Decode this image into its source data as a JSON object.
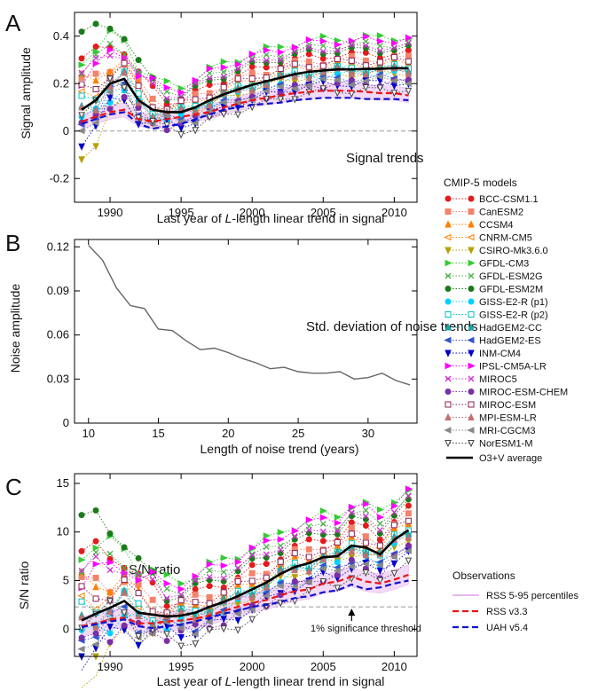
{
  "chart_data": [
    {
      "panel": "A",
      "type": "line",
      "annotation": "Signal trends",
      "xlabel_parts": [
        "Last year of ",
        "L",
        "-length linear trend in signal"
      ],
      "ylabel": "Signal amplitude",
      "xlim": [
        1987.5,
        2011.6
      ],
      "ylim": [
        -0.3,
        0.5
      ],
      "x_ticks": [
        1990,
        1995,
        2000,
        2005,
        2010
      ],
      "y_ticks": [
        -0.2,
        0,
        0.2,
        0.4
      ],
      "y_tick_labels": [
        "-0.2",
        "0",
        "0.2",
        "0.4"
      ],
      "reference_line": 0,
      "average": {
        "x": [
          1988,
          1989,
          1990,
          1991,
          1992,
          1993,
          1994,
          1995,
          1996,
          1997,
          1998,
          1999,
          2000,
          2001,
          2002,
          2003,
          2004,
          2005,
          2006,
          2007,
          2008,
          2009,
          2010,
          2011
        ],
        "values": [
          0.09,
          0.13,
          0.2,
          0.22,
          0.13,
          0.09,
          0.08,
          0.08,
          0.1,
          0.13,
          0.155,
          0.175,
          0.195,
          0.21,
          0.225,
          0.24,
          0.25,
          0.255,
          0.26,
          0.26,
          0.262,
          0.263,
          0.265,
          0.265
        ]
      },
      "rss_mean": {
        "x": [
          1988,
          1989,
          1990,
          1991,
          1992,
          1993,
          1994,
          1995,
          1996,
          1997,
          1998,
          1999,
          2000,
          2001,
          2002,
          2003,
          2004,
          2005,
          2006,
          2007,
          2008,
          2009,
          2010,
          2011
        ],
        "values": [
          0.04,
          0.06,
          0.08,
          0.09,
          0.05,
          0.04,
          0.05,
          0.06,
          0.07,
          0.08,
          0.1,
          0.115,
          0.13,
          0.14,
          0.15,
          0.16,
          0.165,
          0.17,
          0.17,
          0.17,
          0.165,
          0.16,
          0.16,
          0.15
        ]
      },
      "uah_mean": {
        "x": [
          1988,
          1989,
          1990,
          1991,
          1992,
          1993,
          1994,
          1995,
          1996,
          1997,
          1998,
          1999,
          2000,
          2001,
          2002,
          2003,
          2004,
          2005,
          2006,
          2007,
          2008,
          2009,
          2010,
          2011
        ],
        "values": [
          0.03,
          0.05,
          0.07,
          0.08,
          0.03,
          0.01,
          0.02,
          0.03,
          0.05,
          0.07,
          0.09,
          0.1,
          0.11,
          0.115,
          0.12,
          0.13,
          0.135,
          0.14,
          0.14,
          0.14,
          0.135,
          0.135,
          0.135,
          0.13
        ]
      }
    },
    {
      "panel": "B",
      "type": "line",
      "annotation": "Std. deviation of noise trends",
      "xlabel": "Length of noise trend (years)",
      "ylabel": "Noise amplitude",
      "xlim": [
        9.0,
        33.5
      ],
      "ylim": [
        0,
        0.125
      ],
      "x_ticks": [
        10,
        15,
        20,
        25,
        30
      ],
      "y_ticks": [
        0,
        0.03,
        0.06,
        0.09,
        0.12
      ],
      "y_tick_labels": [
        "0",
        "0.03",
        "0.06",
        "0.09",
        "0.12"
      ],
      "series": [
        {
          "x": [
            10,
            11,
            12,
            13,
            14,
            15,
            16,
            17,
            18,
            19,
            20,
            21,
            22,
            23,
            24,
            25,
            26,
            27,
            28,
            29,
            30,
            31,
            32,
            33
          ],
          "values": [
            0.121,
            0.111,
            0.092,
            0.08,
            0.078,
            0.064,
            0.063,
            0.056,
            0.05,
            0.051,
            0.048,
            0.044,
            0.041,
            0.037,
            0.038,
            0.035,
            0.034,
            0.034,
            0.035,
            0.03,
            0.031,
            0.034,
            0.029,
            0.026
          ]
        }
      ]
    },
    {
      "panel": "C",
      "type": "line",
      "annotation": "S/N ratio",
      "threshold_label": "1% significance threshold",
      "xlabel_parts": [
        "Last year of ",
        "L",
        "-length linear trend in signal"
      ],
      "ylabel": "S/N ratio",
      "xlim": [
        1987.5,
        2011.6
      ],
      "ylim": [
        -2.8,
        16
      ],
      "x_ticks": [
        1990,
        1995,
        2000,
        2005,
        2010
      ],
      "y_ticks": [
        0,
        5,
        10,
        15
      ],
      "y_tick_labels": [
        "0",
        "5",
        "10",
        "15"
      ],
      "threshold": 2.3,
      "average": {
        "x": [
          1988,
          1989,
          1990,
          1991,
          1992,
          1993,
          1994,
          1995,
          1996,
          1997,
          1998,
          1999,
          2000,
          2001,
          2002,
          2003,
          2004,
          2005,
          2006,
          2007,
          2008,
          2009,
          2010,
          2011
        ],
        "values": [
          0.9,
          1.6,
          2.2,
          2.9,
          1.7,
          1.5,
          1.3,
          1.4,
          1.7,
          2.3,
          2.8,
          3.4,
          4.1,
          4.8,
          5.7,
          6.4,
          6.8,
          7.4,
          7.5,
          8.6,
          8.4,
          7.7,
          9.2,
          10.2
        ]
      },
      "rss_mean": {
        "x": [
          1988,
          1989,
          1990,
          1991,
          1992,
          1993,
          1994,
          1995,
          1996,
          1997,
          1998,
          1999,
          2000,
          2001,
          2002,
          2003,
          2004,
          2005,
          2006,
          2007,
          2008,
          2009,
          2010,
          2011
        ],
        "values": [
          0.3,
          0.6,
          1.0,
          1.2,
          0.6,
          0.6,
          0.8,
          0.9,
          1.1,
          1.4,
          1.9,
          2.3,
          2.7,
          3.0,
          3.5,
          3.9,
          4.1,
          4.7,
          4.9,
          5.4,
          4.9,
          4.7,
          5.1,
          5.6
        ]
      },
      "uah_mean": {
        "x": [
          1988,
          1989,
          1990,
          1991,
          1992,
          1993,
          1994,
          1995,
          1996,
          1997,
          1998,
          1999,
          2000,
          2001,
          2002,
          2003,
          2004,
          2005,
          2006,
          2007,
          2008,
          2009,
          2010,
          2011
        ],
        "values": [
          0.2,
          0.5,
          0.8,
          1.0,
          0.3,
          0.1,
          0.3,
          0.5,
          0.8,
          1.2,
          1.6,
          1.9,
          2.3,
          2.5,
          2.8,
          3.2,
          3.4,
          3.8,
          4.0,
          4.6,
          4.1,
          4.3,
          4.7,
          5.0
        ]
      }
    }
  ],
  "models": [
    {
      "name": "BCC-CSM1.1",
      "color": "#e41a1c",
      "marker": "circle-filled"
    },
    {
      "name": "CanESM2",
      "color": "#f4836b",
      "marker": "square-filled"
    },
    {
      "name": "CCSM4",
      "color": "#ff7f00",
      "marker": "triangle-up-filled"
    },
    {
      "name": "CNRM-CM5",
      "color": "#ff7f00",
      "marker": "triangle-left-open"
    },
    {
      "name": "CSIRO-Mk3.6.0",
      "color": "#b8a000",
      "marker": "triangle-down-filled"
    },
    {
      "name": "GFDL-CM3",
      "color": "#33cc33",
      "marker": "triangle-right-filled"
    },
    {
      "name": "GFDL-ESM2G",
      "color": "#4daf4a",
      "marker": "cross"
    },
    {
      "name": "GFDL-ESM2M",
      "color": "#1b7a1b",
      "marker": "circle-filled"
    },
    {
      "name": "GISS-E2-R (p1)",
      "color": "#00d0ff",
      "marker": "circle-filled"
    },
    {
      "name": "GISS-E2-R (p2)",
      "color": "#00c0c0",
      "marker": "square-open"
    },
    {
      "name": "HadGEM2-CC",
      "color": "#1aa6a6",
      "marker": "triangle-up-filled"
    },
    {
      "name": "HadGEM2-ES",
      "color": "#3355cc",
      "marker": "triangle-left-filled"
    },
    {
      "name": "INM-CM4",
      "color": "#0000cc",
      "marker": "triangle-down-filled"
    },
    {
      "name": "IPSL-CM5A-LR",
      "color": "#ff00ff",
      "marker": "triangle-right-filled"
    },
    {
      "name": "MIROC5",
      "color": "#cc33cc",
      "marker": "cross"
    },
    {
      "name": "MIROC-ESM-CHEM",
      "color": "#7b2fa6",
      "marker": "circle-filled"
    },
    {
      "name": "MIROC-ESM",
      "color": "#8b2252",
      "marker": "square-open"
    },
    {
      "name": "MPI-ESM-LR",
      "color": "#c07070",
      "marker": "triangle-up-filled"
    },
    {
      "name": "MRI-CGCM3",
      "color": "#888888",
      "marker": "triangle-left-filled"
    },
    {
      "name": "NorESM1-M",
      "color": "#444444",
      "marker": "triangle-down-open"
    }
  ],
  "legend": {
    "models_title": "CMIP-5 models",
    "average_label": "O3+V average",
    "obs_title": "Observations",
    "obs_items": [
      {
        "name": "RSS 5-95 percentiles",
        "color": "#e8b8f0",
        "style": "band"
      },
      {
        "name": "RSS v3.3",
        "color": "#ee1111",
        "style": "dashed"
      },
      {
        "name": "UAH v5.4",
        "color": "#1111cc",
        "style": "dashed"
      }
    ]
  }
}
